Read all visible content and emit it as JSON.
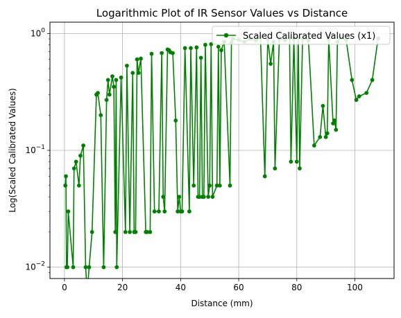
{
  "chart_data": {
    "type": "line",
    "title": "Logarithmic Plot of IR Sensor Values vs Distance",
    "xlabel": "Distance (mm)",
    "ylabel": "Log(Scaled Calibrated Values)",
    "yscale": "log",
    "xlim": [
      -5,
      113.5
    ],
    "ylim": [
      0.008,
      1.25
    ],
    "x_ticks": [
      0,
      20,
      40,
      60,
      80,
      100
    ],
    "y_ticks": [
      {
        "value": 0.01,
        "label": "10",
        "exp": "−2"
      },
      {
        "value": 0.1,
        "label": "10",
        "exp": "−1"
      },
      {
        "value": 1,
        "label": "10",
        "exp": "0"
      }
    ],
    "grid": true,
    "legend_position": "top-right",
    "series": [
      {
        "name": "Scaled Calibrated Values (x1)",
        "color": "#008000",
        "marker": "circle",
        "points": [
          [
            0.3,
            0.05
          ],
          [
            0.5,
            0.06
          ],
          [
            0.7,
            0.01
          ],
          [
            1,
            0.01
          ],
          [
            1.3,
            0.03
          ],
          [
            3,
            0.01
          ],
          [
            3.3,
            0.07
          ],
          [
            4,
            0.08
          ],
          [
            5,
            0.05
          ],
          [
            5.5,
            0.09
          ],
          [
            6.5,
            0.11
          ],
          [
            7.3,
            0.01
          ],
          [
            7.8,
            0.006
          ],
          [
            8.5,
            0.01
          ],
          [
            9.5,
            0.02
          ],
          [
            11,
            0.3
          ],
          [
            11.5,
            0.31
          ],
          [
            12.5,
            0.2
          ],
          [
            13.5,
            0.01
          ],
          [
            14.5,
            0.27
          ],
          [
            15,
            0.4
          ],
          [
            15.5,
            0.3
          ],
          [
            16.5,
            0.43
          ],
          [
            17,
            0.35
          ],
          [
            17.5,
            0.02
          ],
          [
            17.8,
            0.4
          ],
          [
            18,
            0.01
          ],
          [
            19.5,
            0.42
          ],
          [
            21,
            0.02
          ],
          [
            21.5,
            0.53
          ],
          [
            22.5,
            0.02
          ],
          [
            23.5,
            0.46
          ],
          [
            24,
            0.02
          ],
          [
            24.5,
            0.02
          ],
          [
            25,
            0.6
          ],
          [
            25.5,
            0.46
          ],
          [
            26.3,
            0.61
          ],
          [
            28,
            0.02
          ],
          [
            28.5,
            0.02
          ],
          [
            29.5,
            0.02
          ],
          [
            30,
            0.67
          ],
          [
            31,
            0.03
          ],
          [
            32.5,
            0.03
          ],
          [
            33.5,
            0.68
          ],
          [
            34,
            0.04
          ],
          [
            34.5,
            0.03
          ],
          [
            35.5,
            0.73
          ],
          [
            36,
            0.72
          ],
          [
            36.5,
            0.69
          ],
          [
            37.3,
            0.68
          ],
          [
            38.3,
            0.18
          ],
          [
            39,
            0.03
          ],
          [
            39.5,
            0.04
          ],
          [
            40,
            0.03
          ],
          [
            40.5,
            0.03
          ],
          [
            41.5,
            0.75
          ],
          [
            43,
            0.03
          ],
          [
            43.5,
            0.75
          ],
          [
            44.5,
            0.05
          ],
          [
            45.5,
            0.76
          ],
          [
            46,
            0.04
          ],
          [
            46.5,
            0.04
          ],
          [
            47,
            0.62
          ],
          [
            47.5,
            0.04
          ],
          [
            48,
            0.04
          ],
          [
            48.5,
            0.8
          ],
          [
            49.5,
            0.04
          ],
          [
            50,
            0.05
          ],
          [
            50.5,
            0.81
          ],
          [
            51,
            0.04
          ],
          [
            52.5,
            0.05
          ],
          [
            53,
            0.77
          ],
          [
            53.5,
            0.05
          ],
          [
            54,
            0.72
          ],
          [
            55,
            0.85
          ],
          [
            57,
            0.05
          ],
          [
            57.5,
            0.84
          ],
          [
            58,
            0.9
          ],
          [
            60,
            0.88
          ],
          [
            62,
            0.85
          ],
          [
            64,
            0.9
          ],
          [
            66,
            0.87
          ],
          [
            67.5,
            0.93
          ],
          [
            69,
            0.06
          ],
          [
            70,
            0.9
          ],
          [
            71,
            0.55
          ],
          [
            72,
            0.85
          ],
          [
            72.5,
            0.07
          ],
          [
            74,
            0.9
          ],
          [
            76,
            0.88
          ],
          [
            77.5,
            0.92
          ],
          [
            78,
            0.08
          ],
          [
            79,
            0.9
          ],
          [
            80,
            0.08
          ],
          [
            80.5,
            0.92
          ],
          [
            81,
            0.07
          ],
          [
            82,
            0.9
          ],
          [
            84,
            0.88
          ],
          [
            86,
            0.11
          ],
          [
            88,
            0.13
          ],
          [
            89,
            0.24
          ],
          [
            90,
            0.13
          ],
          [
            90.5,
            0.14
          ],
          [
            91,
            0.9
          ],
          [
            92.5,
            0.17
          ],
          [
            93,
            0.18
          ],
          [
            93.5,
            0.15
          ],
          [
            94,
            0.85
          ],
          [
            95,
            0.92
          ],
          [
            97,
            0.88
          ],
          [
            99,
            0.4
          ],
          [
            100.5,
            0.27
          ],
          [
            101.5,
            0.29
          ],
          [
            104,
            0.31
          ],
          [
            106,
            0.4
          ],
          [
            108,
            0.91
          ]
        ]
      }
    ]
  }
}
